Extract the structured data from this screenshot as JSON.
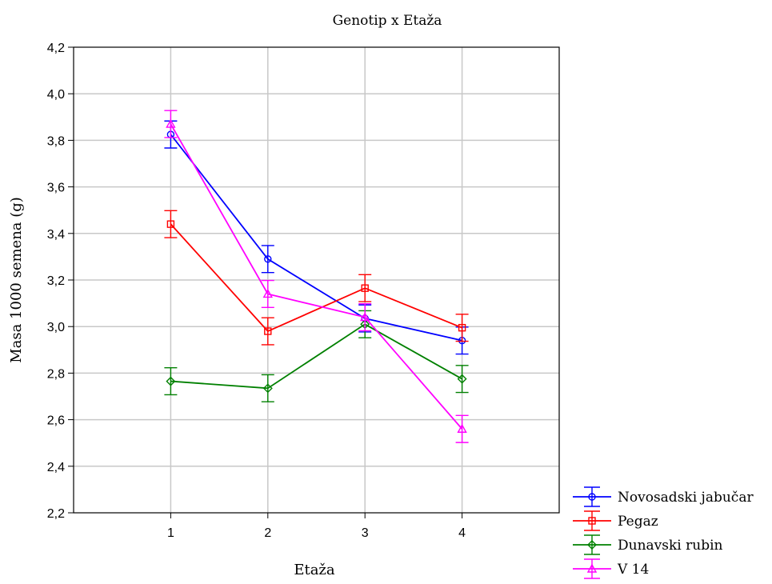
{
  "chart_data": {
    "type": "line",
    "title": "Genotip x Etaža",
    "xlabel": "Etaža",
    "ylabel": "Masa 1000 semena (g)",
    "x": [
      1,
      2,
      3,
      4
    ],
    "x_tick_labels": [
      "1",
      "2",
      "3",
      "4"
    ],
    "xlim": [
      0,
      5
    ],
    "ylim": [
      2.2,
      4.2
    ],
    "y_ticks": [
      2.2,
      2.4,
      2.6,
      2.8,
      3.0,
      3.2,
      3.4,
      3.6,
      3.8,
      4.0,
      4.2
    ],
    "y_tick_labels": [
      "2,2",
      "2,4",
      "2,6",
      "2,8",
      "3,0",
      "3,2",
      "3,4",
      "3,6",
      "3,8",
      "4,0",
      "4,2"
    ],
    "grid": true,
    "legend_position": "bottom-right-outside",
    "series": [
      {
        "name": "Novosadski jabučar",
        "color": "#0000ff",
        "marker": "circle",
        "values": [
          3.825,
          3.29,
          3.035,
          2.94
        ],
        "error": [
          0.058,
          0.058,
          0.058,
          0.058
        ]
      },
      {
        "name": "Pegaz",
        "color": "#ff0000",
        "marker": "square",
        "values": [
          3.44,
          2.98,
          3.165,
          2.995
        ],
        "error": [
          0.058,
          0.058,
          0.058,
          0.058
        ]
      },
      {
        "name": "Dunavski rubin",
        "color": "#008000",
        "marker": "diamond",
        "values": [
          2.765,
          2.735,
          3.01,
          2.775
        ],
        "error": [
          0.058,
          0.058,
          0.058,
          0.058
        ]
      },
      {
        "name": "V 14",
        "color": "#ff00ff",
        "marker": "triangle",
        "values": [
          3.87,
          3.14,
          3.04,
          2.56
        ],
        "error": [
          0.058,
          0.058,
          0.058,
          0.058
        ]
      }
    ]
  }
}
